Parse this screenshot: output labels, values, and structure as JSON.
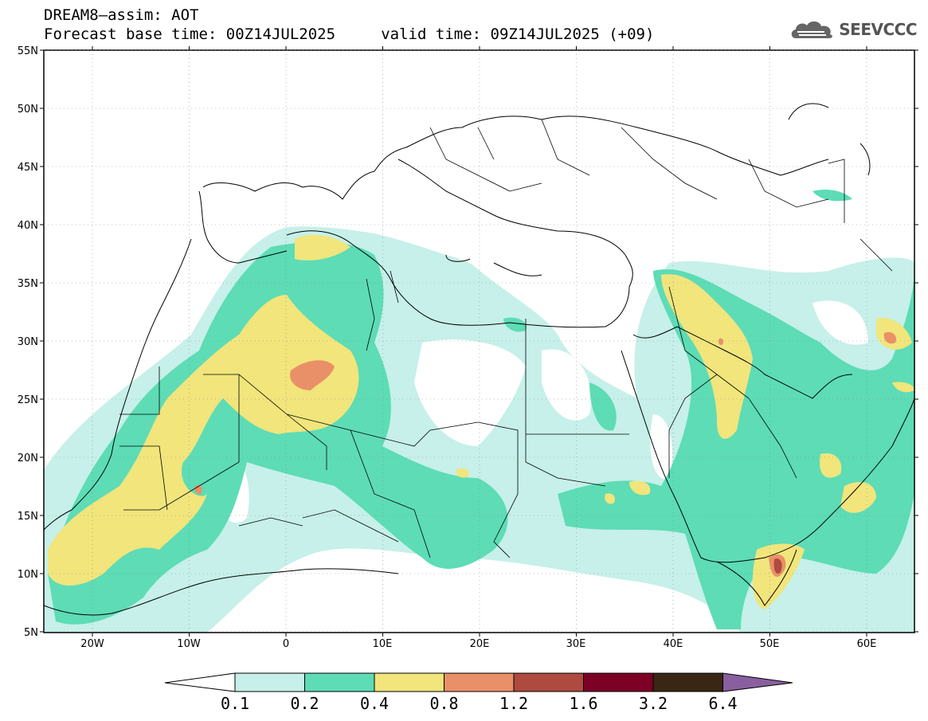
{
  "title_line1": "DREAM8–assim: AOT",
  "title_line2": "Forecast base time: 00Z14JUL2025     valid time: 09Z14JUL2025 (+09)",
  "logo_text": "SEEVCCC",
  "lat_labels": [
    "55N",
    "50N",
    "45N",
    "40N",
    "35N",
    "30N",
    "25N",
    "20N",
    "15N",
    "10N",
    "5N"
  ],
  "lon_labels": [
    "20W",
    "10W",
    "0",
    "10E",
    "20E",
    "30E",
    "40E",
    "50E",
    "60E"
  ],
  "colorbar": {
    "levels": [
      "0.1",
      "0.2",
      "0.4",
      "0.8",
      "1.2",
      "1.6",
      "3.2",
      "6.4"
    ],
    "colors": [
      "#ffffff",
      "#c6f0e9",
      "#5ddcb6",
      "#f1e57c",
      "#ea9068",
      "#ae4a3f",
      "#7d0025",
      "#3a2713",
      "#8a5fa0"
    ]
  }
}
